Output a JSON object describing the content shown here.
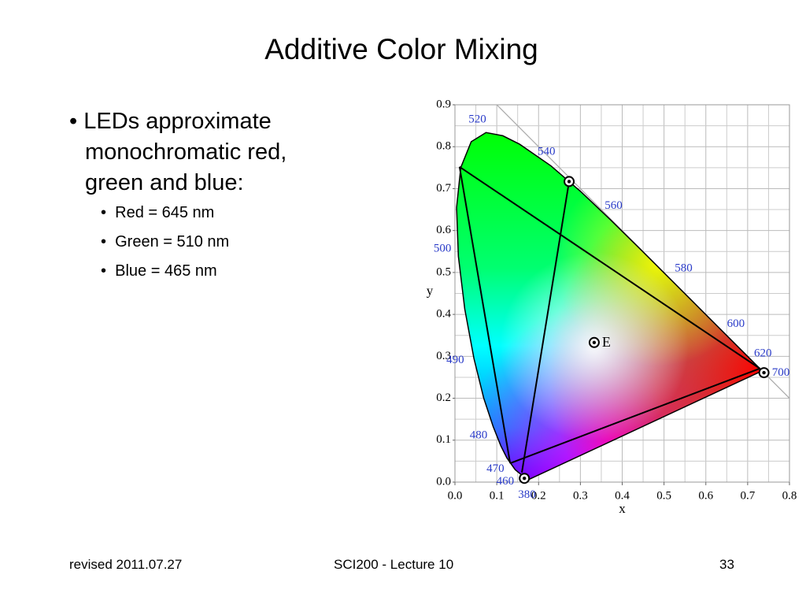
{
  "title": "Additive Color Mixing",
  "bullets": [
    {
      "text": "LEDs approximate monochromatic red, green and blue:",
      "sub": [
        "Red = 645 nm",
        "Green = 510 nm",
        "Blue = 465 nm"
      ]
    }
  ],
  "chart_data": {
    "type": "chromaticity",
    "xlabel": "x",
    "ylabel": "y",
    "xlim": [
      0,
      0.8
    ],
    "ylim": [
      0,
      0.9
    ],
    "xticks": [
      {
        "value": 0,
        "label": "0.0"
      },
      0.1,
      0.2,
      0.3,
      0.4,
      0.5,
      0.6,
      0.7,
      0.8
    ],
    "yticks": [
      {
        "value": 0,
        "label": "0.0"
      },
      0.1,
      0.2,
      0.3,
      0.4,
      0.5,
      0.6,
      0.7,
      0.8,
      0.9
    ],
    "grid": true,
    "locus": {
      "x": [
        0.1741,
        0.144,
        0.1241,
        0.1096,
        0.0913,
        0.0687,
        0.0454,
        0.0235,
        0.0082,
        0.0039,
        0.0139,
        0.0389,
        0.0743,
        0.1142,
        0.1547,
        0.2296,
        0.3016,
        0.3731,
        0.4441,
        0.5125,
        0.5752,
        0.627,
        0.6915,
        0.719,
        0.7347,
        0.1741
      ],
      "y": [
        0.005,
        0.0297,
        0.0578,
        0.0868,
        0.1327,
        0.2007,
        0.295,
        0.4127,
        0.5384,
        0.6548,
        0.7502,
        0.812,
        0.8338,
        0.8262,
        0.8059,
        0.7543,
        0.6923,
        0.6245,
        0.5547,
        0.4866,
        0.4242,
        0.3725,
        0.3083,
        0.2809,
        0.2653,
        0.005
      ]
    },
    "labels": [
      {
        "text": "380",
        "x": 0.19,
        "y": 0.0
      },
      {
        "text": "460",
        "x": 0.144,
        "y": 0.0297
      },
      {
        "text": "470",
        "x": 0.1241,
        "y": 0.0578
      },
      {
        "text": "480",
        "x": 0.0913,
        "y": 0.1327
      },
      {
        "text": "490",
        "x": 0.0454,
        "y": 0.295
      },
      {
        "text": "500",
        "x": 0.0082,
        "y": 0.5384
      },
      {
        "text": "520",
        "x": 0.0743,
        "y": 0.8338
      },
      {
        "text": "540",
        "x": 0.2296,
        "y": 0.7543
      },
      {
        "text": "560",
        "x": 0.3731,
        "y": 0.6245
      },
      {
        "text": "580",
        "x": 0.5125,
        "y": 0.4866
      },
      {
        "text": "600",
        "x": 0.627,
        "y": 0.3725
      },
      {
        "text": "620",
        "x": 0.6915,
        "y": 0.3083
      },
      {
        "text": "700",
        "x": 0.7347,
        "y": 0.2653
      }
    ],
    "markers": [
      {
        "x": 0.273,
        "y": 0.717
      },
      {
        "x": 0.166,
        "y": 0.009
      },
      {
        "x": 0.739,
        "y": 0.261
      },
      {
        "x": 0.333,
        "y": 0.333,
        "label": "E"
      }
    ],
    "segments": [
      {
        "x": [
          0.011,
          0.729
        ],
        "y": [
          0.752,
          0.271
        ]
      },
      {
        "x": [
          0.011,
          0.132
        ],
        "y": [
          0.752,
          0.045
        ]
      },
      {
        "x": [
          0.132,
          0.729
        ],
        "y": [
          0.045,
          0.271
        ]
      },
      {
        "x": [
          0.273,
          0.16
        ],
        "y": [
          0.717,
          0.023
        ]
      }
    ]
  },
  "footer": {
    "left": "revised 2011.07.27",
    "center": "SCI200 - Lecture 10",
    "right": "33"
  }
}
